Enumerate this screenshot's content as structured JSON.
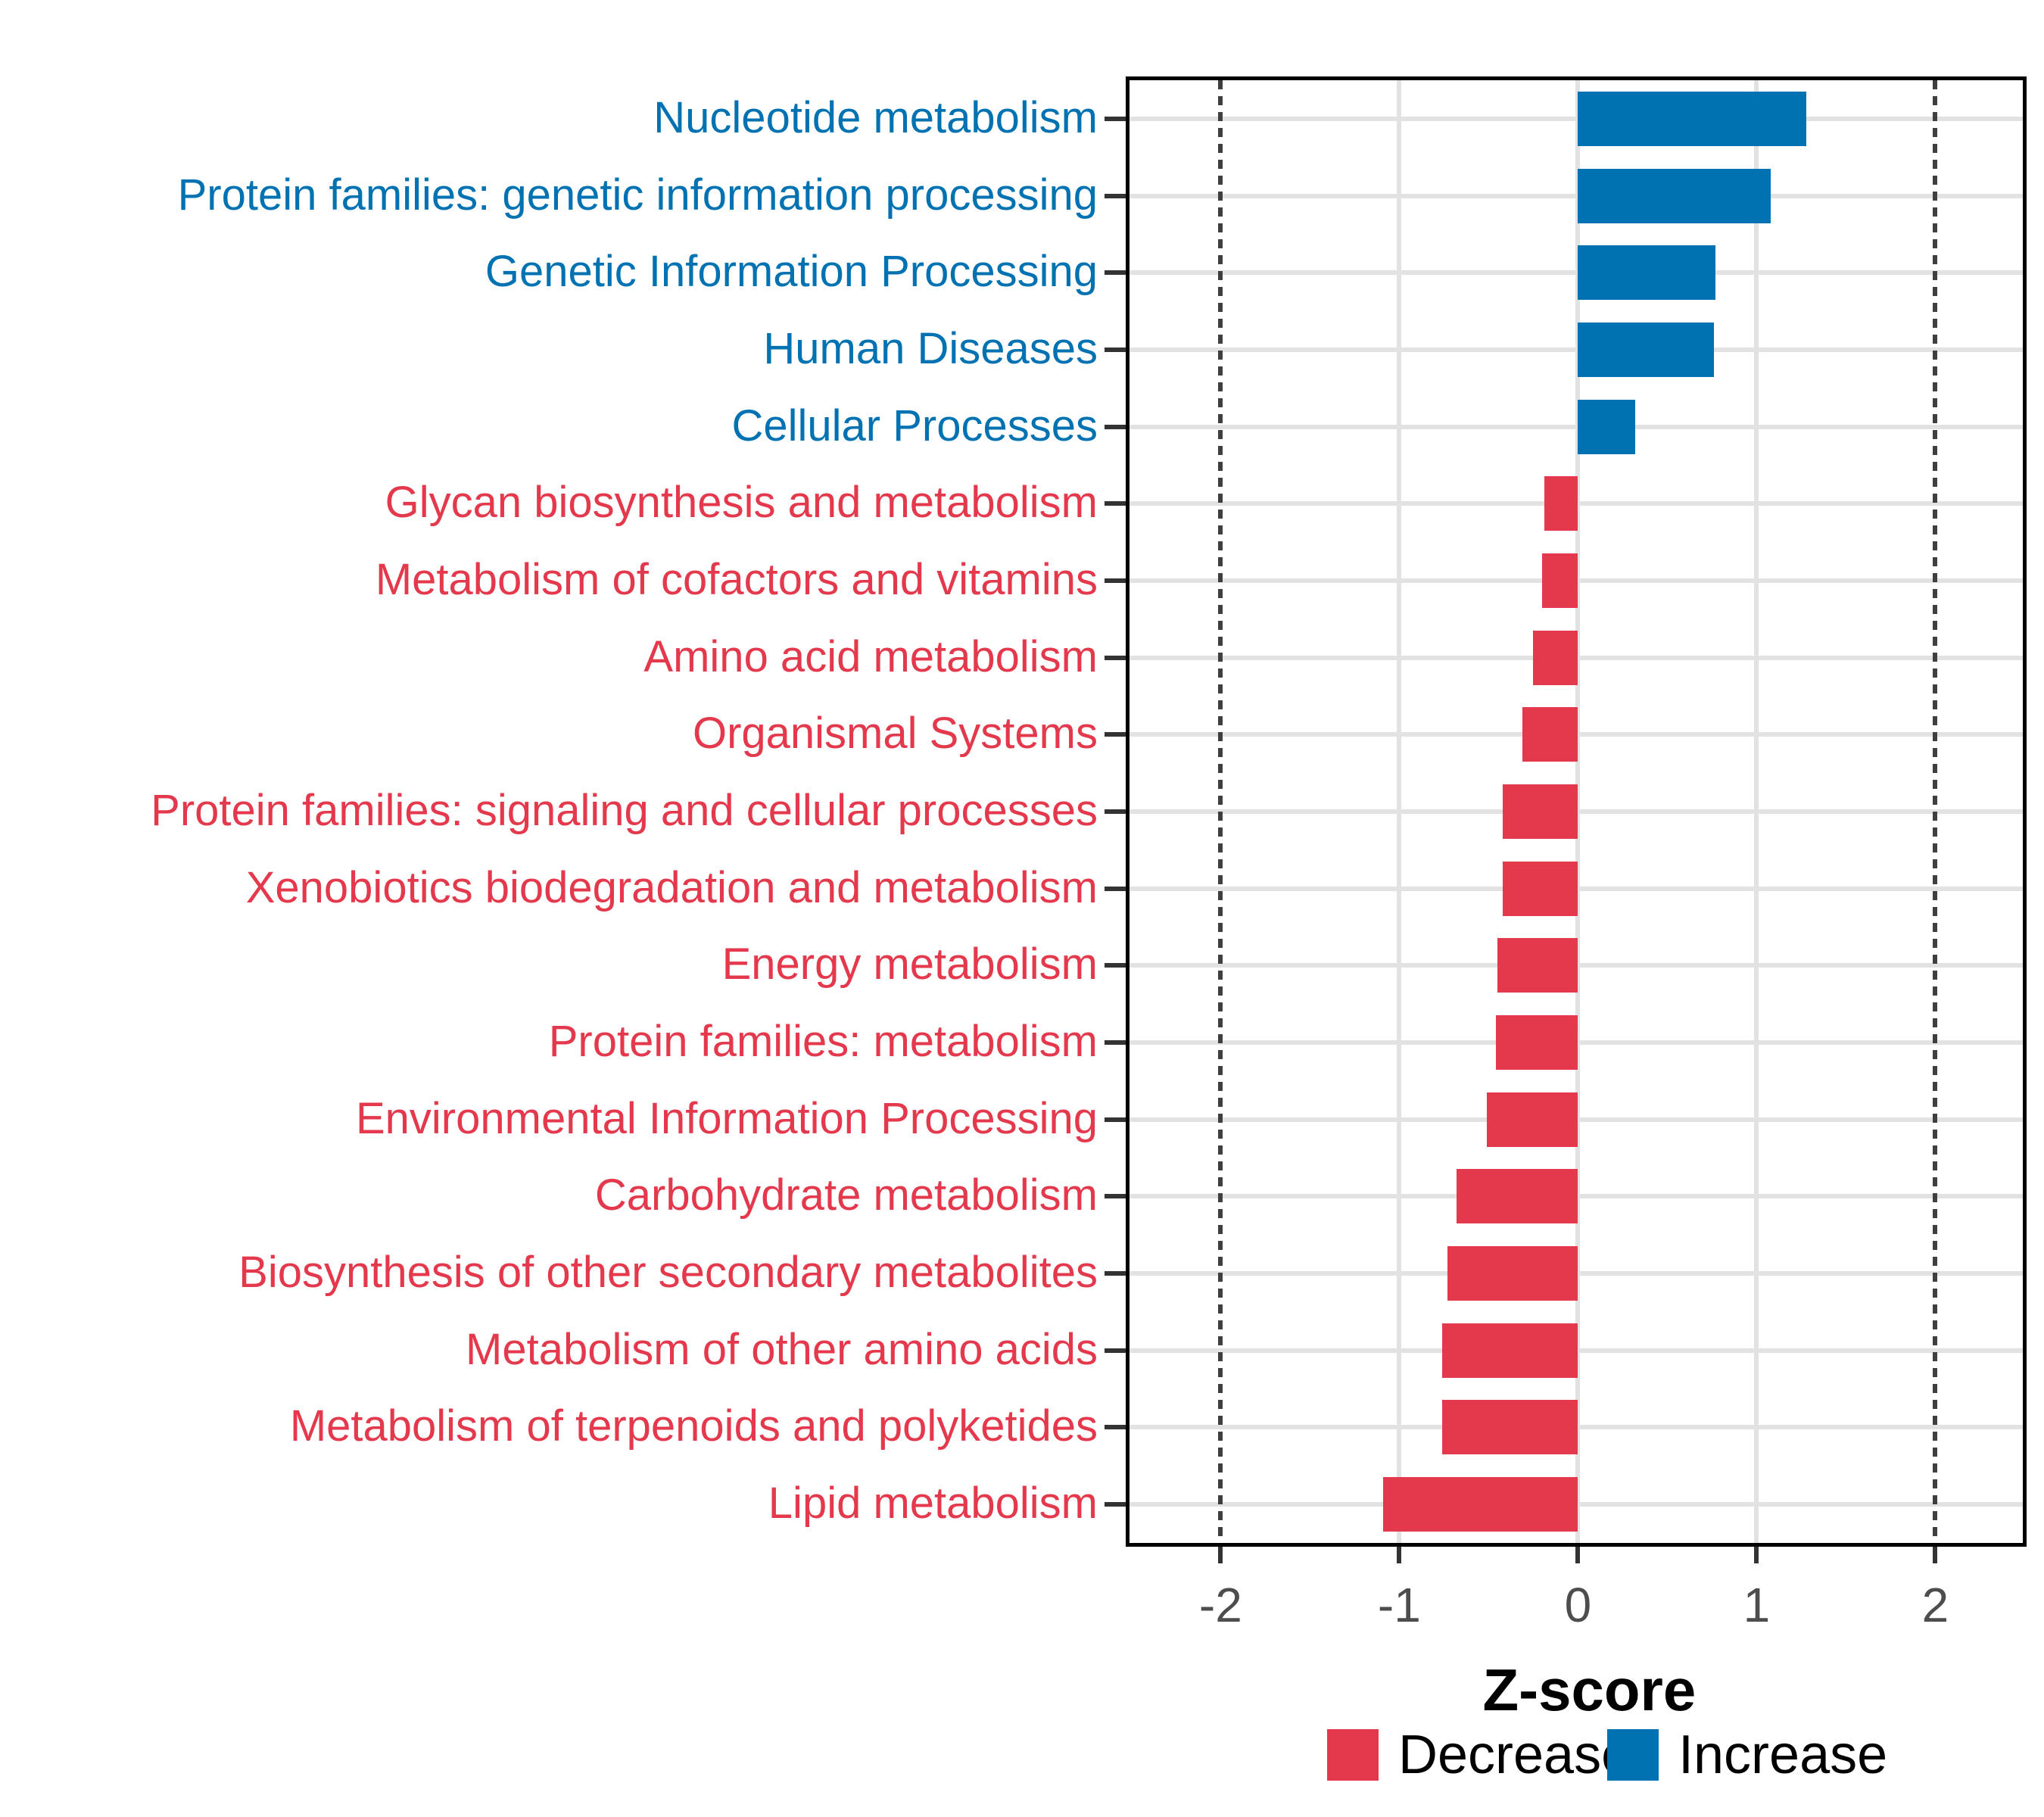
{
  "chart_data": {
    "type": "bar",
    "orientation": "horizontal",
    "xlabel": "Z-score",
    "x_ticks": [
      -2,
      -1,
      0,
      1,
      2
    ],
    "xlim": [
      -2.51,
      2.49
    ],
    "grid": {
      "solid_lines_at": [
        -1,
        0,
        1
      ],
      "dashed_lines_at": [
        -2,
        2
      ]
    },
    "legend_position": "bottom",
    "categories": [
      "Nucleotide metabolism",
      "Protein families: genetic information processing",
      "Genetic Information Processing",
      "Human Diseases",
      "Cellular Processes",
      "Glycan biosynthesis and metabolism",
      "Metabolism of cofactors and vitamins",
      "Amino acid metabolism",
      "Organismal Systems",
      "Protein families: signaling and cellular processes",
      "Xenobiotics biodegradation and metabolism",
      "Energy metabolism",
      "Protein families: metabolism",
      "Environmental Information Processing",
      "Carbohydrate metabolism",
      "Biosynthesis of other secondary metabolites",
      "Metabolism of other amino acids",
      "Metabolism of terpenoids and polyketides",
      "Lipid metabolism"
    ],
    "values": [
      1.28,
      1.08,
      0.77,
      0.76,
      0.32,
      -0.19,
      -0.2,
      -0.25,
      -0.31,
      -0.42,
      -0.42,
      -0.45,
      -0.46,
      -0.51,
      -0.68,
      -0.73,
      -0.76,
      -0.76,
      -1.09
    ],
    "groups": [
      "Increase",
      "Increase",
      "Increase",
      "Increase",
      "Increase",
      "Decrease",
      "Decrease",
      "Decrease",
      "Decrease",
      "Decrease",
      "Decrease",
      "Decrease",
      "Decrease",
      "Decrease",
      "Decrease",
      "Decrease",
      "Decrease",
      "Decrease",
      "Decrease"
    ],
    "legend": [
      {
        "label": "Decrease",
        "color": "#E4394C"
      },
      {
        "label": "Increase",
        "color": "#0072B2"
      }
    ],
    "colors": {
      "Decrease": "#E4394C",
      "Increase": "#0072B2",
      "label_decrease": "#E4394C",
      "label_increase": "#0072B2",
      "tick_label": "#4D4D4D",
      "tick_mark": "#333333",
      "grid_major": "#E2E2E2",
      "grid_dashed": "#3F3F3F",
      "panel_border": "#000000"
    }
  }
}
